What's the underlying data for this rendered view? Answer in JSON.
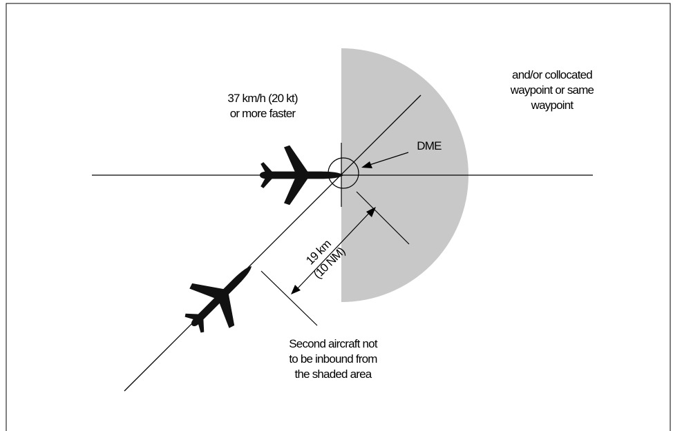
{
  "labels": {
    "speed_line1": "37 km/h (20 kt)",
    "speed_line2": "or more faster",
    "waypoint_line1": "and/or collocated",
    "waypoint_line2": "waypoint or same",
    "waypoint_line3": "waypoint",
    "dme": "DME",
    "distance_line1": "19 km",
    "distance_line2": "(10 NM)",
    "note_line1": "Second aircraft not",
    "note_line2": "to be inbound from",
    "note_line3": "the shaded area"
  },
  "colors": {
    "shaded_area": "#c8c8c8",
    "lines": "#000000",
    "aircraft": "#111111",
    "frame": "#000000"
  },
  "icons": {
    "aircraft": "airplane-icon"
  }
}
